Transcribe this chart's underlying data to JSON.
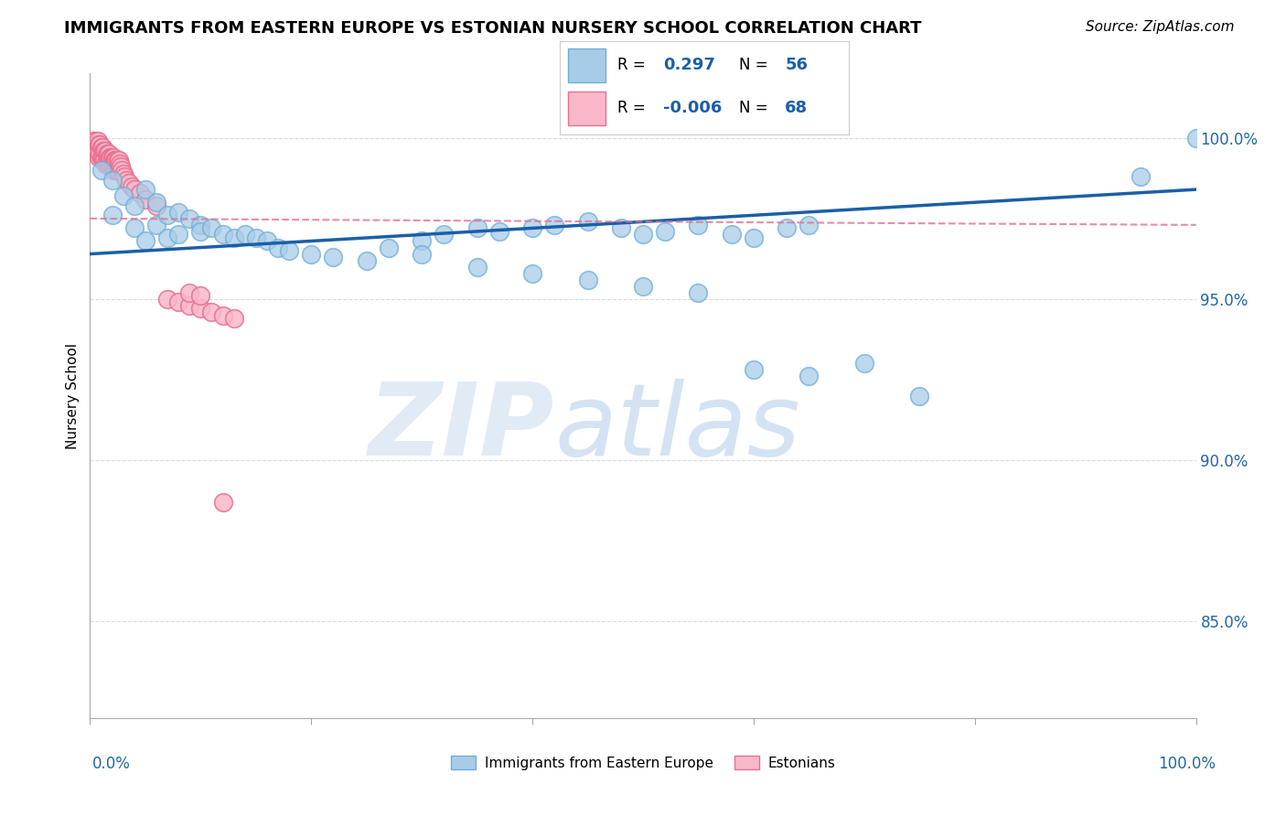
{
  "title": "IMMIGRANTS FROM EASTERN EUROPE VS ESTONIAN NURSERY SCHOOL CORRELATION CHART",
  "source": "Source: ZipAtlas.com",
  "ylabel": "Nursery School",
  "legend_blue_r": "0.297",
  "legend_blue_n": "56",
  "legend_pink_r": "-0.006",
  "legend_pink_n": "68",
  "blue_color": "#a8cce8",
  "blue_edge": "#6baed6",
  "pink_color": "#f9b8c8",
  "pink_edge": "#e87090",
  "trend_blue_color": "#1a5fa8",
  "trend_pink_color": "#e07090",
  "ytick_labels": [
    "85.0%",
    "90.0%",
    "95.0%",
    "100.0%"
  ],
  "ytick_values": [
    0.85,
    0.9,
    0.95,
    1.0
  ],
  "xlim": [
    0.0,
    1.0
  ],
  "ylim": [
    0.82,
    1.02
  ],
  "blue_scatter_x": [
    0.01,
    0.02,
    0.02,
    0.03,
    0.04,
    0.04,
    0.05,
    0.05,
    0.06,
    0.06,
    0.07,
    0.07,
    0.08,
    0.08,
    0.09,
    0.1,
    0.1,
    0.11,
    0.12,
    0.13,
    0.14,
    0.15,
    0.16,
    0.17,
    0.18,
    0.2,
    0.22,
    0.25,
    0.27,
    0.3,
    0.32,
    0.35,
    0.37,
    0.4,
    0.42,
    0.45,
    0.48,
    0.5,
    0.52,
    0.55,
    0.58,
    0.6,
    0.63,
    0.65,
    0.3,
    0.35,
    0.4,
    0.45,
    0.5,
    0.55,
    0.6,
    0.65,
    0.7,
    0.75,
    0.95,
    1.0
  ],
  "blue_scatter_y": [
    0.99,
    0.987,
    0.976,
    0.982,
    0.979,
    0.972,
    0.984,
    0.968,
    0.98,
    0.973,
    0.976,
    0.969,
    0.977,
    0.97,
    0.975,
    0.973,
    0.971,
    0.972,
    0.97,
    0.969,
    0.97,
    0.969,
    0.968,
    0.966,
    0.965,
    0.964,
    0.963,
    0.962,
    0.966,
    0.968,
    0.97,
    0.972,
    0.971,
    0.972,
    0.973,
    0.974,
    0.972,
    0.97,
    0.971,
    0.973,
    0.97,
    0.969,
    0.972,
    0.973,
    0.964,
    0.96,
    0.958,
    0.956,
    0.954,
    0.952,
    0.928,
    0.926,
    0.93,
    0.92,
    0.988,
    1.0
  ],
  "pink_scatter_x": [
    0.003,
    0.004,
    0.005,
    0.005,
    0.006,
    0.006,
    0.007,
    0.007,
    0.008,
    0.008,
    0.009,
    0.009,
    0.01,
    0.01,
    0.011,
    0.011,
    0.012,
    0.012,
    0.013,
    0.013,
    0.014,
    0.014,
    0.015,
    0.015,
    0.016,
    0.016,
    0.017,
    0.017,
    0.018,
    0.018,
    0.019,
    0.019,
    0.02,
    0.02,
    0.021,
    0.021,
    0.022,
    0.022,
    0.023,
    0.023,
    0.024,
    0.024,
    0.025,
    0.025,
    0.026,
    0.026,
    0.027,
    0.028,
    0.029,
    0.03,
    0.031,
    0.033,
    0.035,
    0.038,
    0.04,
    0.045,
    0.05,
    0.06,
    0.07,
    0.08,
    0.09,
    0.1,
    0.11,
    0.12,
    0.13,
    0.09,
    0.1,
    0.12
  ],
  "pink_scatter_y": [
    0.999,
    0.997,
    0.999,
    0.996,
    0.998,
    0.995,
    0.999,
    0.996,
    0.998,
    0.994,
    0.998,
    0.995,
    0.997,
    0.994,
    0.997,
    0.994,
    0.996,
    0.993,
    0.996,
    0.993,
    0.996,
    0.992,
    0.995,
    0.992,
    0.995,
    0.992,
    0.995,
    0.992,
    0.994,
    0.991,
    0.994,
    0.991,
    0.994,
    0.991,
    0.994,
    0.991,
    0.993,
    0.99,
    0.993,
    0.99,
    0.993,
    0.99,
    0.993,
    0.99,
    0.993,
    0.99,
    0.992,
    0.991,
    0.99,
    0.989,
    0.988,
    0.987,
    0.986,
    0.985,
    0.984,
    0.983,
    0.981,
    0.979,
    0.95,
    0.949,
    0.948,
    0.947,
    0.946,
    0.945,
    0.944,
    0.952,
    0.951,
    0.887
  ]
}
